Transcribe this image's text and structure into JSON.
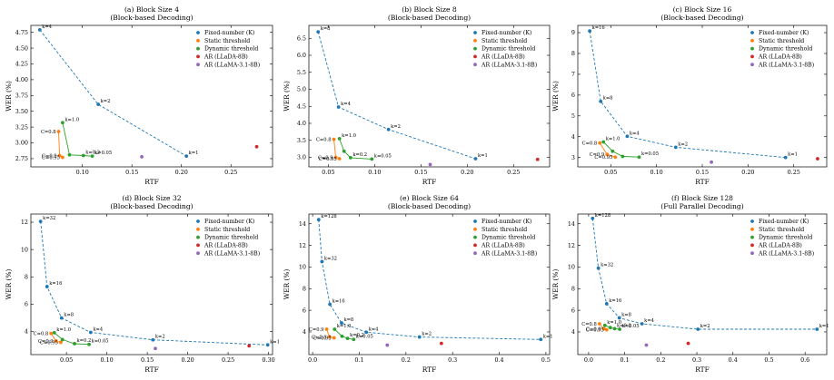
{
  "legend_labels": [
    "Fixed-number (K)",
    "Static threshold",
    "Dynamic threshold",
    "AR (LLaDA-8B)",
    "AR (LLaMA-3.1-8B)"
  ],
  "colors": {
    "Fixed-number (K)": "#1f77b4",
    "Static threshold": "#ff7f0e",
    "Dynamic threshold": "#2ca02c",
    "AR (LLaDA-8B)": "#d62728",
    "AR (LLaMA-3.1-8B)": "#9467bd"
  },
  "chart_data": [
    {
      "type": "scatter",
      "title": "(a) Block Size 4",
      "subtitle": "(Block-based Decoding)",
      "xlabel": "RTF",
      "ylabel": "WER (%)",
      "xlim": [
        0.048,
        0.292
      ],
      "ylim": [
        2.62,
        4.86
      ],
      "xticks": [
        0.1,
        0.15,
        0.2,
        0.25
      ],
      "xtick_labels": [
        "0.10",
        "0.15",
        "0.20",
        "0.25"
      ],
      "yticks": [
        2.75,
        3.0,
        3.25,
        3.5,
        3.75,
        4.0,
        4.25,
        4.5,
        4.75
      ],
      "ytick_labels": [
        "2.75",
        "3.00",
        "3.25",
        "3.50",
        "3.75",
        "4.00",
        "4.25",
        "4.50",
        "4.75"
      ],
      "legend_position": "top-right",
      "grid": false,
      "series": [
        {
          "name": "Fixed-number (K)",
          "x": [
            0.057,
            0.116,
            0.205
          ],
          "y": [
            4.79,
            3.61,
            2.79
          ],
          "labels": [
            "k=4",
            "k=2",
            "k=1"
          ],
          "line": "dashed"
        },
        {
          "name": "Static threshold",
          "x": [
            0.076,
            0.077,
            0.08
          ],
          "y": [
            3.18,
            2.8,
            2.77
          ],
          "labels": [
            "C=0.8",
            "C=0.9",
            "C=0.95"
          ]
        },
        {
          "name": "Dynamic threshold",
          "x": [
            0.08,
            0.087,
            0.101,
            0.11
          ],
          "y": [
            3.32,
            2.81,
            2.8,
            2.79
          ],
          "labels": [
            "k=1.0",
            "",
            "k=0.2",
            "k=0.05"
          ]
        },
        {
          "name": "AR (LLaDA-8B)",
          "x": [
            0.276
          ],
          "y": [
            2.94
          ],
          "labels": [
            ""
          ]
        },
        {
          "name": "AR (LLaMA-3.1-8B)",
          "x": [
            0.16
          ],
          "y": [
            2.78
          ],
          "labels": [
            ""
          ]
        }
      ]
    },
    {
      "type": "scatter",
      "title": "(b) Block Size 8",
      "subtitle": "(Block-based Decoding)",
      "xlabel": "RTF",
      "ylabel": "WER (%)",
      "xlim": [
        0.029,
        0.289
      ],
      "ylim": [
        2.72,
        6.88
      ],
      "xticks": [
        0.05,
        0.1,
        0.15,
        0.2,
        0.25
      ],
      "xtick_labels": [
        "0.05",
        "0.10",
        "0.15",
        "0.20",
        "0.25"
      ],
      "yticks": [
        3.0,
        3.5,
        4.0,
        4.5,
        5.0,
        5.5,
        6.0,
        6.5
      ],
      "ytick_labels": [
        "3.0",
        "3.5",
        "4.0",
        "4.5",
        "5.0",
        "5.5",
        "6.0",
        "6.5"
      ],
      "legend_position": "top-right",
      "grid": false,
      "series": [
        {
          "name": "Fixed-number (K)",
          "x": [
            0.039,
            0.061,
            0.115,
            0.209
          ],
          "y": [
            6.69,
            4.48,
            3.82,
            2.96
          ],
          "labels": [
            "k=8",
            "k=4",
            "k=2",
            "k=1"
          ],
          "line": "dashed"
        },
        {
          "name": "Static threshold",
          "x": [
            0.056,
            0.058,
            0.062
          ],
          "y": [
            3.53,
            3.0,
            2.96
          ],
          "labels": [
            "C=0.8",
            "C=0.9",
            "C=0.95"
          ]
        },
        {
          "name": "Dynamic threshold",
          "x": [
            0.062,
            0.067,
            0.074,
            0.097
          ],
          "y": [
            3.55,
            3.18,
            2.99,
            2.95
          ],
          "labels": [
            "k=1.0",
            "",
            "k=0.2",
            "k=0.05"
          ]
        },
        {
          "name": "AR (LLaDA-8B)",
          "x": [
            0.276
          ],
          "y": [
            2.94
          ],
          "labels": [
            ""
          ]
        },
        {
          "name": "AR (LLaMA-3.1-8B)",
          "x": [
            0.16
          ],
          "y": [
            2.79
          ],
          "labels": [
            ""
          ]
        }
      ]
    },
    {
      "type": "scatter",
      "title": "(c) Block Size 16",
      "subtitle": "(Block-based Decoding)",
      "xlabel": "RTF",
      "ylabel": "WER (%)",
      "xlim": [
        0.014,
        0.286
      ],
      "ylim": [
        2.55,
        9.35
      ],
      "xticks": [
        0.05,
        0.1,
        0.15,
        0.2,
        0.25
      ],
      "xtick_labels": [
        "0.05",
        "0.10",
        "0.15",
        "0.20",
        "0.25"
      ],
      "yticks": [
        3,
        4,
        5,
        6,
        7,
        8,
        9
      ],
      "ytick_labels": [
        "3",
        "4",
        "5",
        "6",
        "7",
        "8",
        "9"
      ],
      "legend_position": "top-right",
      "grid": false,
      "series": [
        {
          "name": "Fixed-number (K)",
          "x": [
            0.027,
            0.039,
            0.068,
            0.121,
            0.241
          ],
          "y": [
            9.08,
            5.7,
            4.02,
            3.49,
            3.0
          ],
          "labels": [
            "k=16",
            "k=8",
            "k=4",
            "k=2",
            "k=1"
          ],
          "line": "dashed"
        },
        {
          "name": "Static threshold",
          "x": [
            0.038,
            0.046,
            0.055
          ],
          "y": [
            3.7,
            3.15,
            3.02
          ],
          "labels": [
            "C=0.8",
            "C=0.9",
            "C=0.95"
          ]
        },
        {
          "name": "Dynamic threshold",
          "x": [
            0.042,
            0.052,
            0.063,
            0.081
          ],
          "y": [
            3.75,
            3.3,
            3.05,
            3.02
          ],
          "labels": [
            "k=1.0",
            "",
            "",
            "k=0.05"
          ]
        },
        {
          "name": "AR (LLaDA-8B)",
          "x": [
            0.276
          ],
          "y": [
            2.94
          ],
          "labels": [
            ""
          ]
        },
        {
          "name": "AR (LLaMA-3.1-8B)",
          "x": [
            0.16
          ],
          "y": [
            2.78
          ],
          "labels": [
            ""
          ]
        }
      ]
    },
    {
      "type": "scatter",
      "title": "(d) Block Size 32",
      "subtitle": "(Block-based Decoding)",
      "xlabel": "RTF",
      "ylabel": "WER (%)",
      "xlim": [
        0.006,
        0.305
      ],
      "ylim": [
        2.3,
        12.6
      ],
      "xticks": [
        0.05,
        0.1,
        0.15,
        0.2,
        0.25,
        0.3
      ],
      "xtick_labels": [
        "0.05",
        "0.10",
        "0.15",
        "0.20",
        "0.25",
        "0.30"
      ],
      "yticks": [
        4,
        6,
        8,
        10,
        12
      ],
      "ytick_labels": [
        "4",
        "6",
        "8",
        "10",
        "12"
      ],
      "legend_position": "top-right",
      "grid": false,
      "series": [
        {
          "name": "Fixed-number (K)",
          "x": [
            0.018,
            0.026,
            0.044,
            0.08,
            0.157,
            0.299
          ],
          "y": [
            12.06,
            7.28,
            4.98,
            3.93,
            3.38,
            3.01
          ],
          "labels": [
            "k=32",
            "k=16",
            "k=8",
            "k=4",
            "k=2",
            "k=1"
          ],
          "line": "dashed"
        },
        {
          "name": "Static threshold",
          "x": [
            0.031,
            0.037,
            0.043
          ],
          "y": [
            3.85,
            3.3,
            3.2
          ],
          "labels": [
            "C=0.8",
            "C=0.9",
            "C=0.95"
          ]
        },
        {
          "name": "Dynamic threshold",
          "x": [
            0.035,
            0.045,
            0.06,
            0.078
          ],
          "y": [
            3.9,
            3.4,
            3.1,
            3.05
          ],
          "labels": [
            "k=1.0",
            "",
            "k=0.2",
            "k=0.05"
          ]
        },
        {
          "name": "AR (LLaDA-8B)",
          "x": [
            0.276
          ],
          "y": [
            2.94
          ],
          "labels": [
            ""
          ]
        },
        {
          "name": "AR (LLaMA-3.1-8B)",
          "x": [
            0.16
          ],
          "y": [
            2.75
          ],
          "labels": [
            ""
          ]
        }
      ]
    },
    {
      "type": "scatter",
      "title": "(e) Block Size 64",
      "subtitle": "(Block-based Decoding)",
      "xlabel": "RTF",
      "ylabel": "WER (%)",
      "xlim": [
        -0.008,
        0.508
      ],
      "ylim": [
        1.9,
        14.9
      ],
      "xticks": [
        0.0,
        0.1,
        0.2,
        0.3,
        0.4,
        0.5
      ],
      "xtick_labels": [
        "0.0",
        "0.1",
        "0.2",
        "0.3",
        "0.4",
        "0.5"
      ],
      "yticks": [
        4,
        6,
        8,
        10,
        12,
        14
      ],
      "ytick_labels": [
        "4",
        "6",
        "8",
        "10",
        "12",
        "14"
      ],
      "legend_position": "top-right",
      "grid": false,
      "series": [
        {
          "name": "Fixed-number (K)",
          "x": [
            0.013,
            0.02,
            0.037,
            0.062,
            0.115,
            0.229,
            0.489
          ],
          "y": [
            14.38,
            10.5,
            6.55,
            4.83,
            3.97,
            3.53,
            3.3
          ],
          "labels": [
            "k=128",
            "k=32",
            "k=16",
            "k=8",
            "k=4",
            "k=2",
            "k=1"
          ],
          "line": "dashed"
        },
        {
          "name": "Static threshold",
          "x": [
            0.03,
            0.036,
            0.046
          ],
          "y": [
            4.25,
            3.55,
            3.45
          ],
          "labels": [
            "C=0.9",
            "C=0.8",
            "C=0.95"
          ]
        },
        {
          "name": "Dynamic threshold",
          "x": [
            0.047,
            0.063,
            0.075,
            0.088
          ],
          "y": [
            4.25,
            3.6,
            3.4,
            3.3
          ],
          "labels": [
            "k=1.0",
            "",
            "k=0.2",
            "k=0.05"
          ]
        },
        {
          "name": "AR (LLaDA-8B)",
          "x": [
            0.276
          ],
          "y": [
            2.94
          ],
          "labels": [
            ""
          ]
        },
        {
          "name": "AR (LLaMA-3.1-8B)",
          "x": [
            0.16
          ],
          "y": [
            2.78
          ],
          "labels": [
            ""
          ]
        }
      ]
    },
    {
      "type": "scatter",
      "title": "(f) Block Size 128",
      "subtitle": "(Full Parallel Decoding)",
      "xlabel": "RTF",
      "ylabel": "WER (%)",
      "xlim": [
        -0.03,
        0.66
      ],
      "ylim": [
        1.9,
        14.9
      ],
      "xticks": [
        0.0,
        0.1,
        0.2,
        0.3,
        0.4,
        0.5,
        0.6
      ],
      "xtick_labels": [
        "0.0",
        "0.1",
        "0.2",
        "0.3",
        "0.4",
        "0.5",
        "0.6"
      ],
      "yticks": [
        4,
        6,
        8,
        10,
        12,
        14
      ],
      "ytick_labels": [
        "4",
        "6",
        "8",
        "10",
        "12",
        "14"
      ],
      "legend_position": "top-right",
      "grid": false,
      "series": [
        {
          "name": "Fixed-number (K)",
          "x": [
            0.011,
            0.027,
            0.05,
            0.085,
            0.148,
            0.303,
            0.633
          ],
          "y": [
            14.5,
            9.9,
            6.6,
            5.3,
            4.75,
            4.25,
            4.25
          ],
          "labels": [
            "k=128",
            "k=32",
            "k=16",
            "k=8",
            "k=4",
            "k=2",
            "k=1"
          ],
          "line": "dashed"
        },
        {
          "name": "Static threshold",
          "x": [
            0.03,
            0.042,
            0.05
          ],
          "y": [
            4.75,
            4.3,
            4.2
          ],
          "labels": [
            "C=0.8",
            "C=0.9",
            "C=0.95"
          ]
        },
        {
          "name": "Dynamic threshold",
          "x": [
            0.045,
            0.06,
            0.072,
            0.086
          ],
          "y": [
            4.6,
            4.4,
            4.3,
            4.25
          ],
          "labels": [
            "k=1.0",
            "",
            "k=0.2",
            "k=0.05"
          ]
        },
        {
          "name": "AR (LLaDA-8B)",
          "x": [
            0.276
          ],
          "y": [
            2.94
          ],
          "labels": [
            ""
          ]
        },
        {
          "name": "AR (LLaMA-3.1-8B)",
          "x": [
            0.16
          ],
          "y": [
            2.78
          ],
          "labels": [
            ""
          ]
        }
      ]
    }
  ]
}
